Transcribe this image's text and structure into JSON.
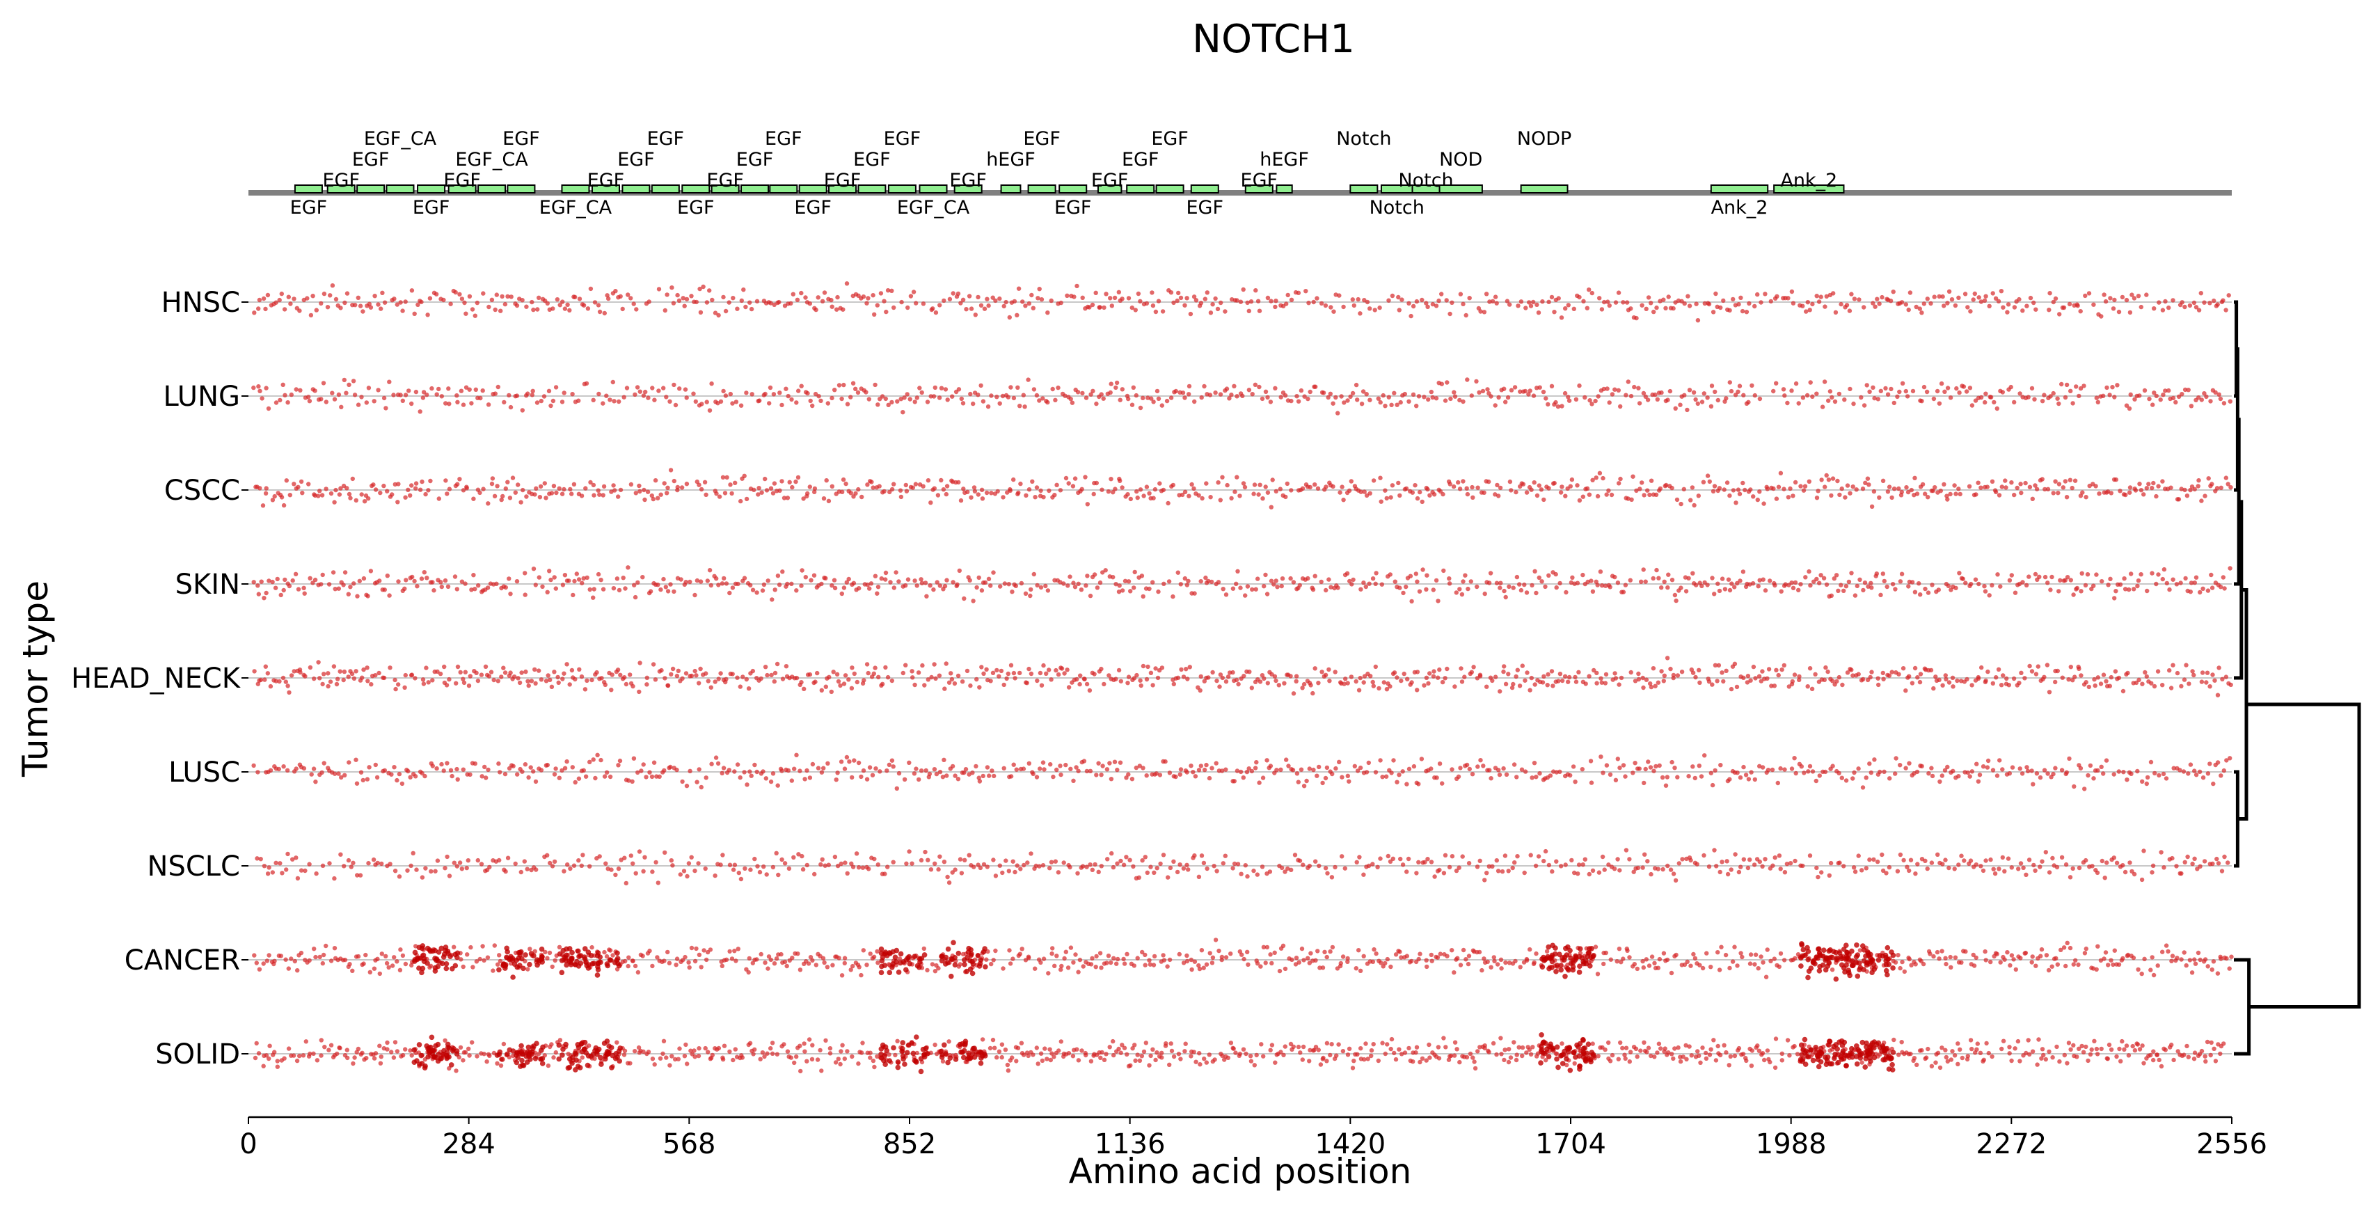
{
  "chart_data": {
    "type": "scatter",
    "title": "NOTCH1",
    "xlabel": "Amino acid position",
    "ylabel": "Tumor type",
    "xlim": [
      0,
      2556
    ],
    "x_ticks": [
      0,
      284,
      568,
      852,
      1136,
      1420,
      1704,
      1988,
      2272,
      2556
    ],
    "categories": [
      "HNSC",
      "LUNG",
      "CSCC",
      "SKIN",
      "HEAD_NECK",
      "LUSC",
      "NSCLC",
      "CANCER",
      "SOLID"
    ],
    "point_color": "#d62728",
    "point_alpha": 0.7,
    "background_density": {
      "HNSC": 1.0,
      "LUNG": 1.0,
      "CSCC": 1.1,
      "SKIN": 1.1,
      "HEAD_NECK": 1.2,
      "LUSC": 1.0,
      "NSCLC": 0.9,
      "CANCER": 1.2,
      "SOLID": 1.4
    },
    "hotspots": [
      {
        "rows": [
          "CANCER",
          "SOLID"
        ],
        "center": 240,
        "width": 60,
        "points": 45
      },
      {
        "rows": [
          "CANCER",
          "SOLID"
        ],
        "center": 350,
        "width": 60,
        "points": 40
      },
      {
        "rows": [
          "CANCER",
          "SOLID"
        ],
        "center": 440,
        "width": 80,
        "points": 55
      },
      {
        "rows": [
          "CANCER",
          "SOLID"
        ],
        "center": 845,
        "width": 60,
        "points": 35
      },
      {
        "rows": [
          "CANCER",
          "SOLID"
        ],
        "center": 920,
        "width": 60,
        "points": 35
      },
      {
        "rows": [
          "CANCER",
          "SOLID"
        ],
        "center": 1700,
        "width": 70,
        "points": 60
      },
      {
        "rows": [
          "CANCER",
          "SOLID"
        ],
        "center": 2060,
        "width": 120,
        "points": 110
      }
    ],
    "protein_domains": [
      {
        "name": "EGF",
        "start": 60,
        "end": 95,
        "label_level": -1
      },
      {
        "name": "EGF",
        "start": 102,
        "end": 137,
        "label_level": 1
      },
      {
        "name": "EGF",
        "start": 140,
        "end": 175,
        "label_level": 2
      },
      {
        "name": "EGF_CA",
        "start": 178,
        "end": 213,
        "label_level": 3
      },
      {
        "name": "EGF",
        "start": 218,
        "end": 253,
        "label_level": -1
      },
      {
        "name": "EGF",
        "start": 258,
        "end": 293,
        "label_level": 1
      },
      {
        "name": "EGF_CA",
        "start": 296,
        "end": 331,
        "label_level": 2
      },
      {
        "name": "EGF",
        "start": 334,
        "end": 369,
        "label_level": 3
      },
      {
        "name": "EGF_CA",
        "start": 404,
        "end": 439,
        "label_level": -1
      },
      {
        "name": "EGF",
        "start": 443,
        "end": 478,
        "label_level": 1
      },
      {
        "name": "EGF",
        "start": 482,
        "end": 517,
        "label_level": 2
      },
      {
        "name": "EGF",
        "start": 520,
        "end": 555,
        "label_level": 3
      },
      {
        "name": "EGF",
        "start": 559,
        "end": 594,
        "label_level": -1
      },
      {
        "name": "EGF",
        "start": 597,
        "end": 632,
        "label_level": 1
      },
      {
        "name": "EGF",
        "start": 635,
        "end": 670,
        "label_level": 2
      },
      {
        "name": "EGF",
        "start": 672,
        "end": 707,
        "label_level": 3
      },
      {
        "name": "EGF",
        "start": 710,
        "end": 745,
        "label_level": -1
      },
      {
        "name": "EGF",
        "start": 748,
        "end": 783,
        "label_level": 1
      },
      {
        "name": "EGF",
        "start": 786,
        "end": 821,
        "label_level": 2
      },
      {
        "name": "EGF",
        "start": 825,
        "end": 860,
        "label_level": 3
      },
      {
        "name": "EGF_CA",
        "start": 865,
        "end": 900,
        "label_level": -1
      },
      {
        "name": "EGF",
        "start": 910,
        "end": 945,
        "label_level": 1
      },
      {
        "name": "hEGF",
        "start": 970,
        "end": 995,
        "label_level": 2
      },
      {
        "name": "EGF",
        "start": 1005,
        "end": 1040,
        "label_level": 3
      },
      {
        "name": "EGF",
        "start": 1045,
        "end": 1080,
        "label_level": -1
      },
      {
        "name": "EGF",
        "start": 1095,
        "end": 1125,
        "label_level": 1
      },
      {
        "name": "EGF",
        "start": 1132,
        "end": 1167,
        "label_level": 2
      },
      {
        "name": "EGF",
        "start": 1170,
        "end": 1205,
        "label_level": 3
      },
      {
        "name": "EGF",
        "start": 1215,
        "end": 1250,
        "label_level": -1
      },
      {
        "name": "EGF",
        "start": 1285,
        "end": 1320,
        "label_level": 1
      },
      {
        "name": "hEGF",
        "start": 1325,
        "end": 1345,
        "label_level": 2
      },
      {
        "name": "Notch",
        "start": 1420,
        "end": 1455,
        "label_level": 3
      },
      {
        "name": "Notch",
        "start": 1460,
        "end": 1500,
        "label_level": -1
      },
      {
        "name": "Notch",
        "start": 1500,
        "end": 1535,
        "label_level": 1
      },
      {
        "name": "NOD",
        "start": 1535,
        "end": 1590,
        "label_level": 2
      },
      {
        "name": "NODP",
        "start": 1640,
        "end": 1700,
        "label_level": 3
      },
      {
        "name": "Ank_2",
        "start": 1885,
        "end": 1958,
        "label_level": -1
      },
      {
        "name": "Ank_2",
        "start": 1966,
        "end": 2056,
        "label_level": 1
      }
    ],
    "dendrogram": {
      "leaves": [
        "HNSC",
        "LUNG",
        "CSCC",
        "SKIN",
        "HEAD_NECK",
        "LUSC",
        "NSCLC",
        "CANCER",
        "SOLID"
      ],
      "merges": [
        {
          "a": "HNSC",
          "b": "LUNG",
          "height": 0.02
        },
        {
          "a": "m0",
          "b": "CSCC",
          "height": 0.03
        },
        {
          "a": "m1",
          "b": "SKIN",
          "height": 0.04
        },
        {
          "a": "m2",
          "b": "HEAD_NECK",
          "height": 0.06
        },
        {
          "a": "LUSC",
          "b": "NSCLC",
          "height": 0.03
        },
        {
          "a": "m3",
          "b": "m4",
          "height": 0.1
        },
        {
          "a": "CANCER",
          "b": "SOLID",
          "height": 0.12
        },
        {
          "a": "m5",
          "b": "m6",
          "height": 1.0
        }
      ]
    }
  }
}
